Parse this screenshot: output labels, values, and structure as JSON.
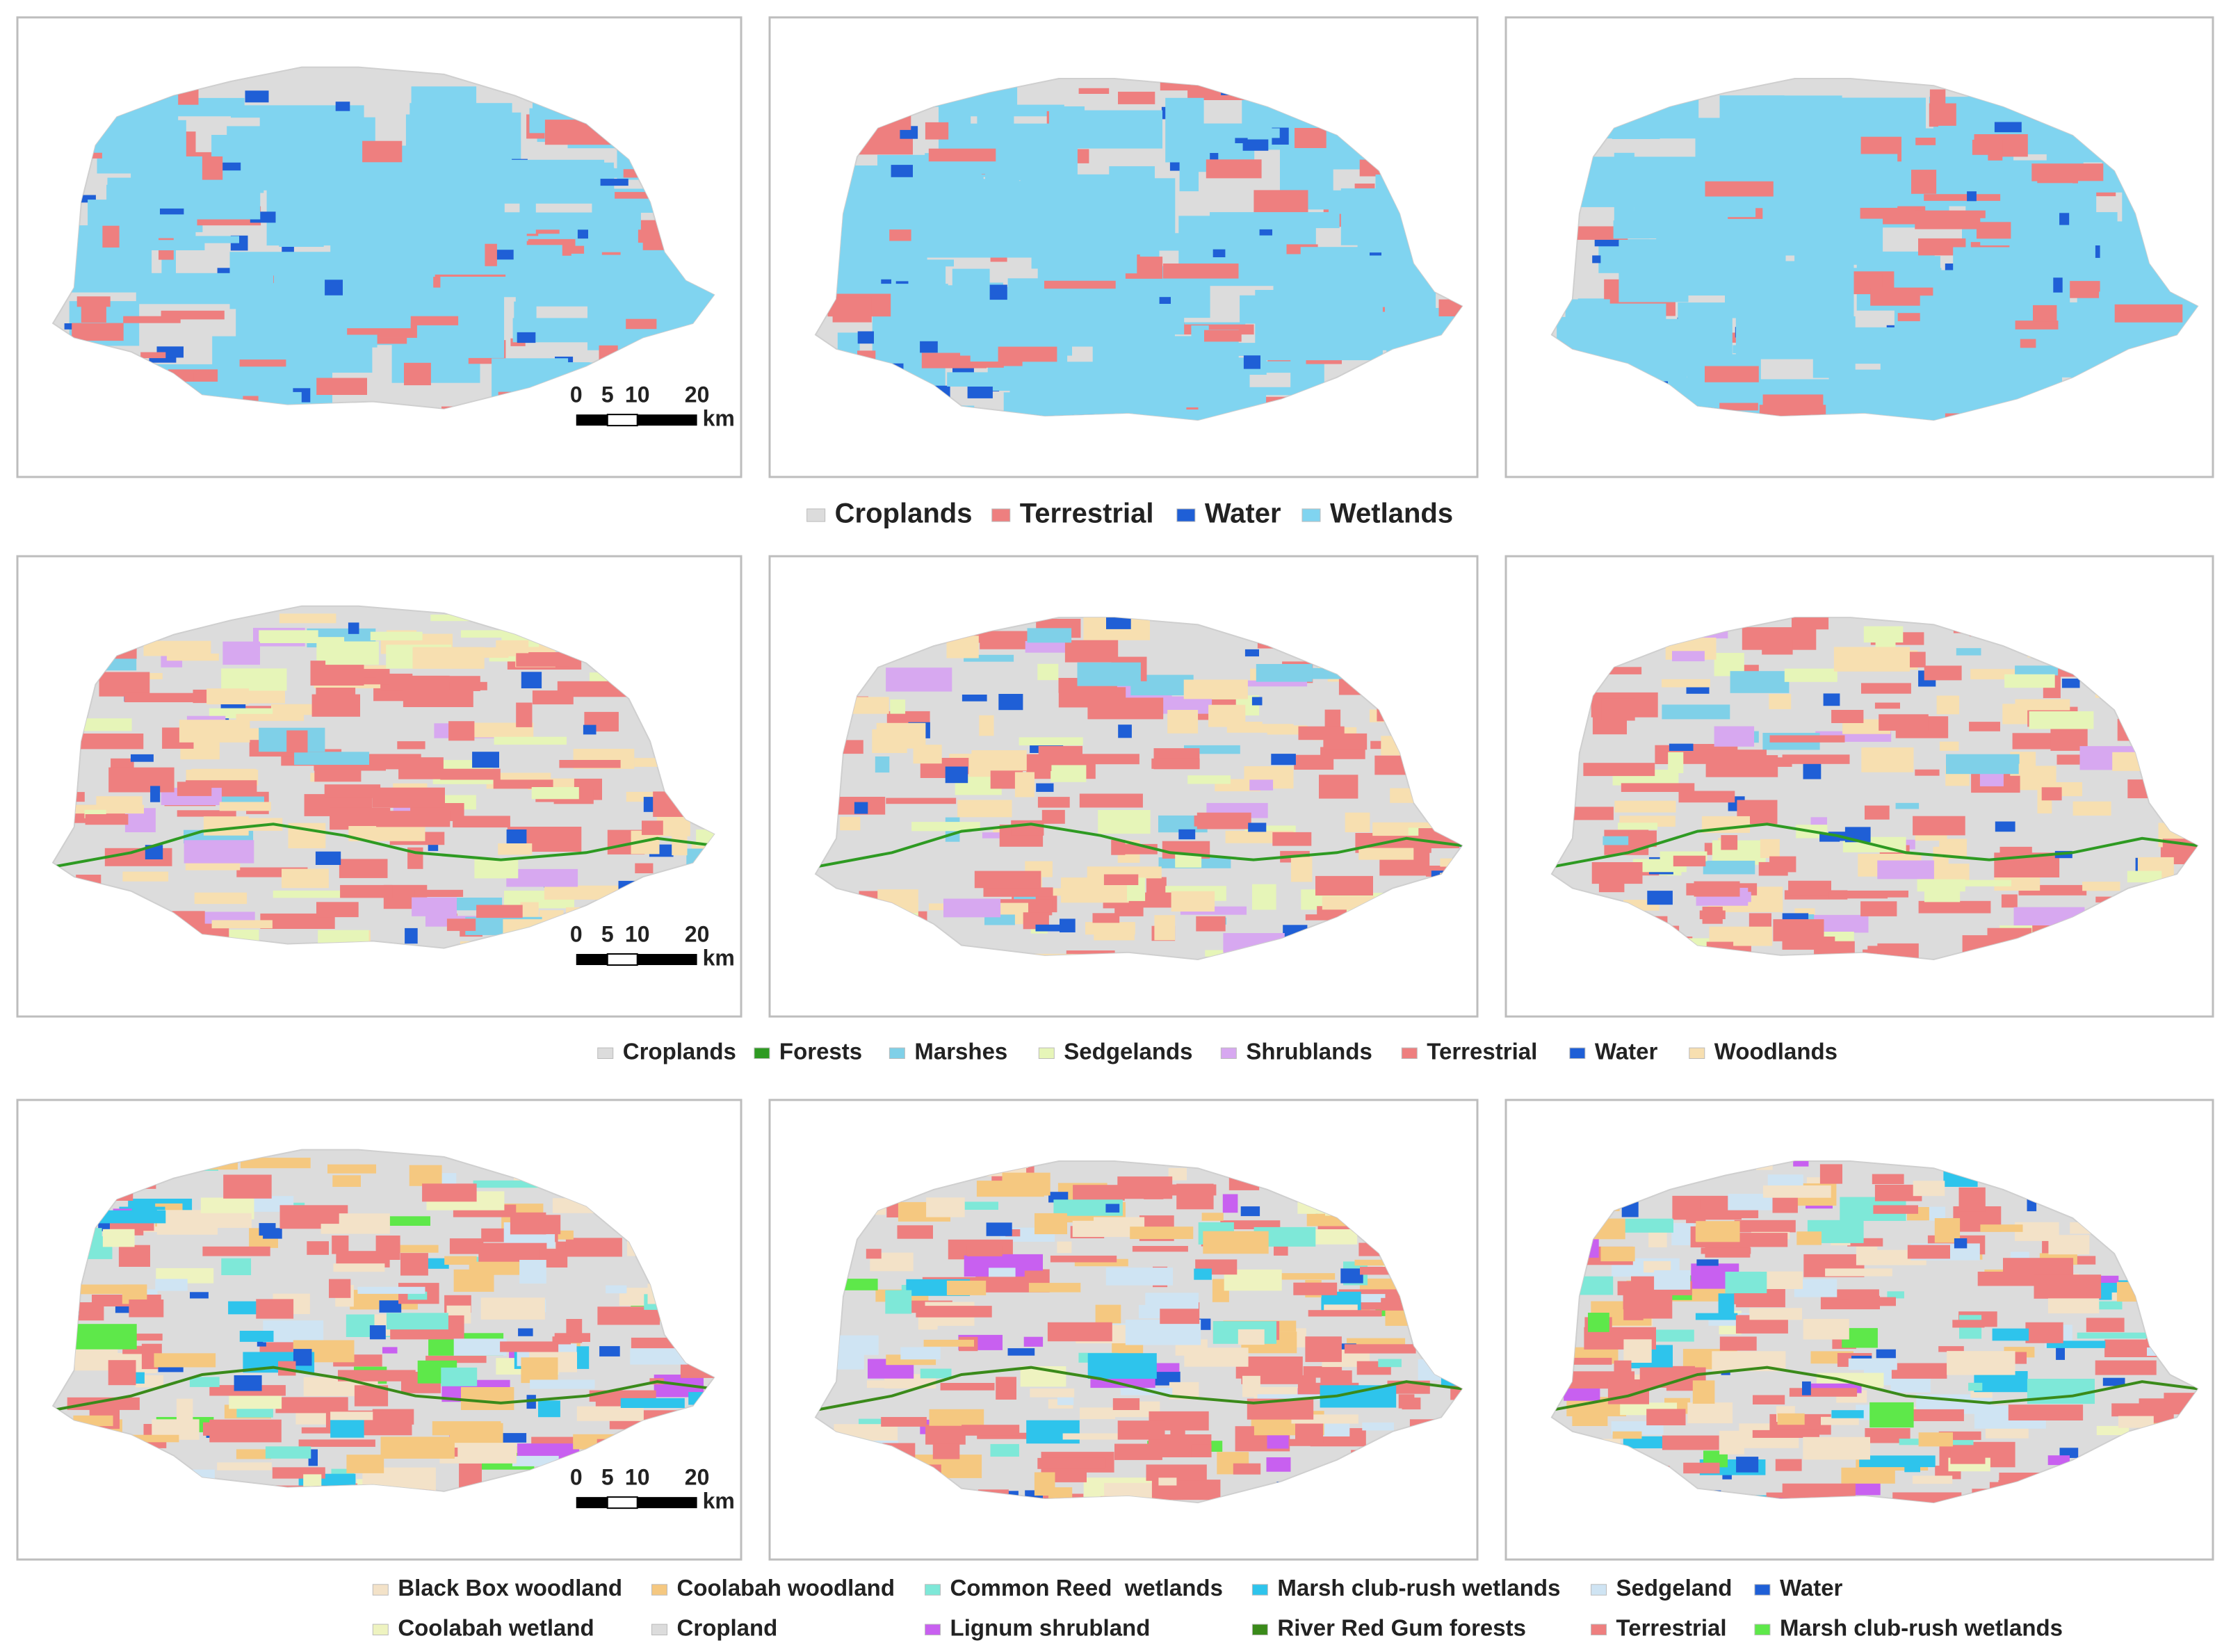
{
  "rows": [
    {
      "legend": [
        {
          "label": "Croplands",
          "color": "#dcdcdc"
        },
        {
          "label": "Terrestrial",
          "color": "#ee7f7f"
        },
        {
          "label": "Water",
          "color": "#1f5fd6"
        },
        {
          "label": "Wetlands",
          "color": "#80d4f0"
        }
      ],
      "scale_bar": {
        "ticks": [
          0,
          5,
          10,
          20
        ],
        "unit": "km"
      }
    },
    {
      "legend": [
        {
          "label": "Croplands",
          "color": "#dcdcdc"
        },
        {
          "label": "Forests",
          "color": "#2e9a22"
        },
        {
          "label": "Marshes",
          "color": "#7fd0e8"
        },
        {
          "label": "Sedgelands",
          "color": "#e6f5b8"
        },
        {
          "label": "Shrublands",
          "color": "#d7a8f0"
        },
        {
          "label": "Terrestrial",
          "color": "#ee7f7f"
        },
        {
          "label": "Water",
          "color": "#1f5fd6"
        },
        {
          "label": "Woodlands",
          "color": "#f7dfb0"
        }
      ],
      "scale_bar": {
        "ticks": [
          0,
          5,
          10,
          20
        ],
        "unit": "km"
      }
    },
    {
      "legend": [
        {
          "label": "Black Box woodland",
          "color": "#f3e2c8"
        },
        {
          "label": "Coolabah woodland",
          "color": "#f5c880"
        },
        {
          "label": "Common Reed  wetlands",
          "color": "#7ee8d8"
        },
        {
          "label": "Marsh club-rush wetlands",
          "color": "#2ec4ec"
        },
        {
          "label": "Sedgeland",
          "color": "#cfe4f3"
        },
        {
          "label": "Water",
          "color": "#1f5fd6"
        },
        {
          "label": "Coolabah wetland",
          "color": "#eef3c0"
        },
        {
          "label": "Cropland",
          "color": "#dcdcdc"
        },
        {
          "label": "Lignum shrubland",
          "color": "#c860f0"
        },
        {
          "label": "River Red Gum forests",
          "color": "#3a8a1a"
        },
        {
          "label": "Terrestrial",
          "color": "#ee7f7f"
        },
        {
          "label": "Marsh club-rush wetlands",
          "color": "#5ee84a"
        }
      ],
      "scale_bar": {
        "ticks": [
          0,
          5,
          10,
          20
        ],
        "unit": "km"
      }
    }
  ]
}
